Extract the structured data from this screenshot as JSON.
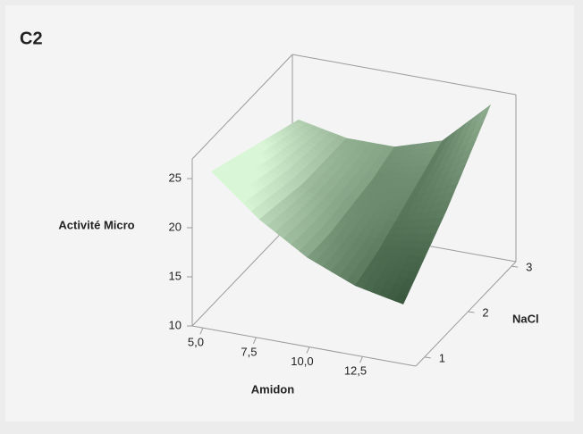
{
  "chart_data": {
    "type": "surface",
    "title": "C2",
    "xlabel": "Amidon",
    "ylabel": "NaCl",
    "zlabel": "Activité Micro",
    "xlim": [
      4.5,
      15
    ],
    "ylim": [
      0.8,
      3.1
    ],
    "zlim": [
      10,
      27
    ],
    "xticks": [
      {
        "value": 5,
        "label": "5,0"
      },
      {
        "value": 7.5,
        "label": "7,5"
      },
      {
        "value": 10,
        "label": "10,0"
      },
      {
        "value": 12.5,
        "label": "12,5"
      }
    ],
    "yticks": [
      1,
      2,
      3
    ],
    "zticks": [
      10,
      15,
      20,
      25
    ],
    "x": [
      5,
      7.25,
      9.5,
      11.75,
      14
    ],
    "y": [
      1,
      1.5,
      2,
      2.5,
      3
    ],
    "z": [
      [
        25,
        21,
        18,
        16,
        15
      ],
      [
        24,
        20.5,
        18,
        17,
        17.5
      ],
      [
        23,
        20,
        18.5,
        18.5,
        20
      ],
      [
        22,
        20,
        19,
        20,
        23
      ],
      [
        21,
        20,
        20,
        21.5,
        26
      ]
    ],
    "colors": [
      "#15331a",
      "#d9f7d6"
    ]
  }
}
